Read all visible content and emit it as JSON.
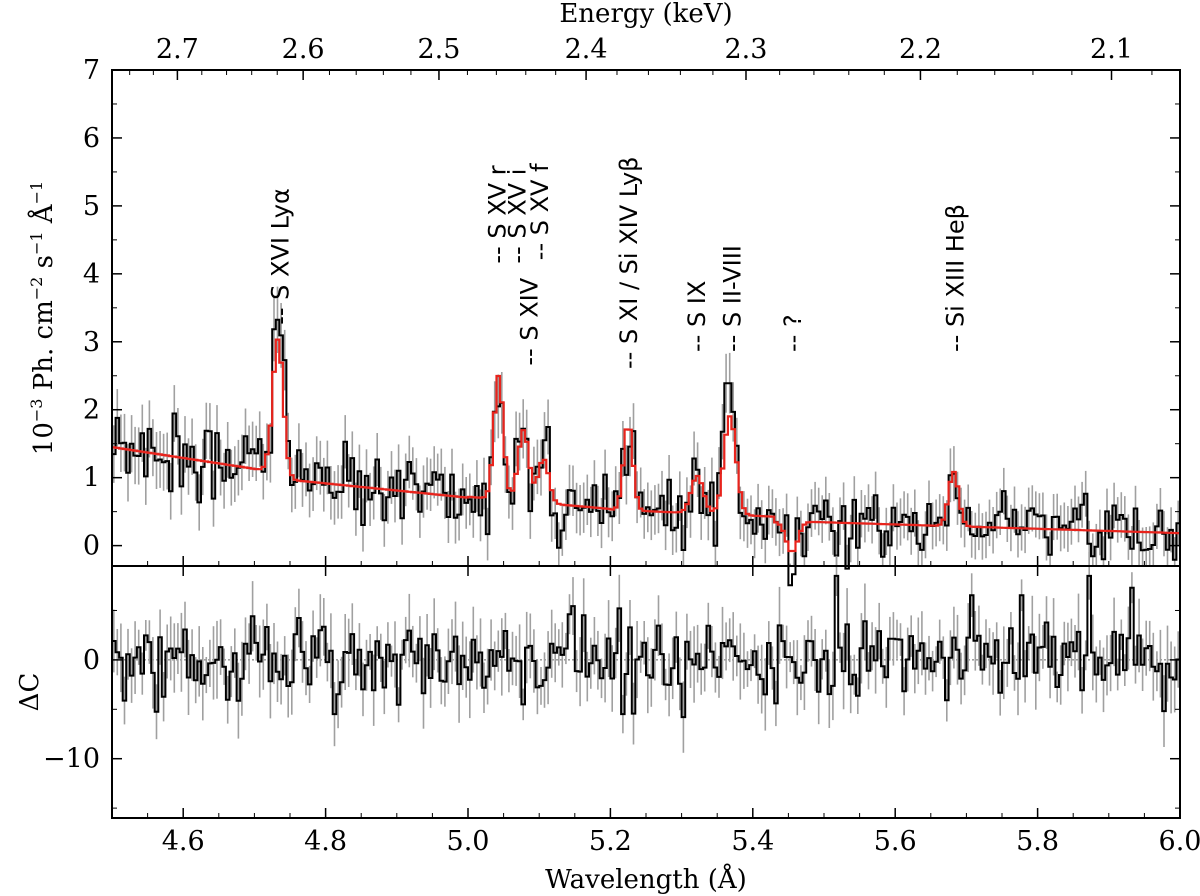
{
  "chart_data": [
    {
      "id": "spectrum",
      "type": "line",
      "xlabel_bottom": "Wavelength (Å)",
      "xlabel_top": "Energy (keV)",
      "ylabel_main": "10",
      "ylabel_sup": "−3",
      "ylabel_rest": " Ph. cm",
      "ylabel_sup2": "−2",
      "ylabel_rest2": " s",
      "ylabel_sup3": "−1",
      "ylabel_rest3": " Å",
      "ylabel_sup4": "−1",
      "xlim": [
        4.5,
        6.0
      ],
      "ylim": [
        -0.3,
        7
      ],
      "x_ticks": [
        4.6,
        4.8,
        5.0,
        5.2,
        5.4,
        5.6,
        5.8,
        6.0
      ],
      "x_tick_labels": [
        "4.6",
        "4.8",
        "5.0",
        "5.2",
        "5.4",
        "5.6",
        "5.8",
        "6.0"
      ],
      "y_ticks": [
        0,
        1,
        2,
        3,
        4,
        5,
        6,
        7
      ],
      "y_tick_labels": [
        "0",
        "1",
        "2",
        "3",
        "4",
        "5",
        "6",
        "7"
      ],
      "energy_ticks": [
        2.7,
        2.6,
        2.5,
        2.4,
        2.3,
        2.2,
        2.1
      ],
      "energy_tick_labels": [
        "2.7",
        "2.6",
        "2.5",
        "2.4",
        "2.3",
        "2.2",
        "2.1"
      ],
      "series": [
        {
          "role": "data",
          "style": "step",
          "color": "#000000",
          "errorbar_color": "#a0a0a0"
        },
        {
          "role": "model",
          "style": "step",
          "color": "#e8231c"
        }
      ],
      "lines": [
        {
          "label": "-- S XVI Lyα",
          "x": 4.735,
          "y": 3.25
        },
        {
          "label": "-- S XV r",
          "x": 5.04,
          "y": 4.15
        },
        {
          "label": "-- S XV i",
          "x": 5.068,
          "y": 4.15
        },
        {
          "label": "-- S XV f",
          "x": 5.1,
          "y": 4.2
        },
        {
          "label": "-- S XIV",
          "x": 5.085,
          "y": 2.65
        },
        {
          "label": "-- S XI / Si XIV Lyβ",
          "x": 5.225,
          "y": 2.6
        },
        {
          "label": "-- S IX",
          "x": 5.32,
          "y": 2.85
        },
        {
          "label": "-- S II-VIII",
          "x": 5.37,
          "y": 2.85
        },
        {
          "label": "-- ?",
          "x": 5.455,
          "y": 2.85
        },
        {
          "label": "-- Si XIII Heβ",
          "x": 5.683,
          "y": 2.85
        }
      ]
    },
    {
      "id": "residuals",
      "type": "line",
      "ylabel": "ΔC",
      "ylim": [
        -16,
        9.5
      ],
      "y_ticks": [
        0,
        -10
      ],
      "y_tick_labels": [
        "0",
        "−10"
      ],
      "series": [
        {
          "role": "residuals",
          "style": "step",
          "color": "#000000",
          "errorbar_color": "#a0a0a0"
        }
      ]
    }
  ]
}
